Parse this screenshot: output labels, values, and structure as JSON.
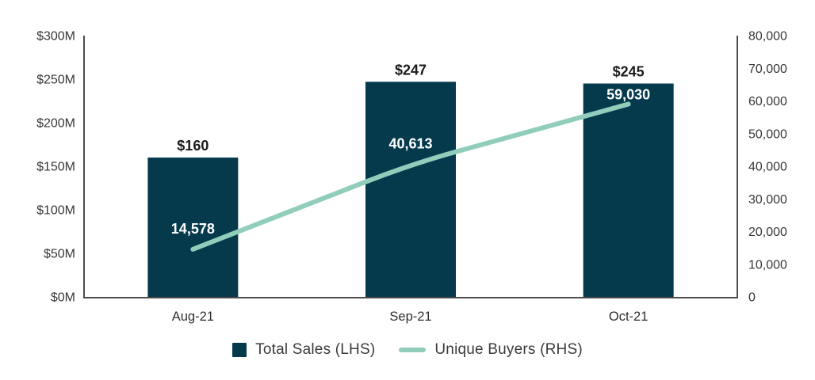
{
  "chart_data": {
    "type": "bar+line",
    "categories": [
      "Aug-21",
      "Sep-21",
      "Oct-21"
    ],
    "series": [
      {
        "name": "Total Sales (LHS)",
        "type": "bar",
        "axis": "left",
        "values": [
          160,
          247,
          245
        ],
        "labels": [
          "$160",
          "$247",
          "$245"
        ],
        "color": "#053A4D"
      },
      {
        "name": "Unique Buyers (RHS)",
        "type": "line",
        "axis": "right",
        "values": [
          14578,
          40613,
          59030
        ],
        "labels": [
          "14,578",
          "40,613",
          "59,030"
        ],
        "color": "#90CDBB"
      }
    ],
    "left_axis": {
      "min": 0,
      "max": 300,
      "ticks": [
        "$0M",
        "$50M",
        "$100M",
        "$150M",
        "$200M",
        "$250M",
        "$300M"
      ]
    },
    "right_axis": {
      "min": 0,
      "max": 80000,
      "ticks": [
        "0",
        "10,000",
        "20,000",
        "30,000",
        "40,000",
        "50,000",
        "60,000",
        "70,000",
        "80,000"
      ]
    },
    "title": "",
    "xlabel": "",
    "ylabel": "",
    "grid": false,
    "legend_position": "bottom"
  },
  "legend": {
    "bar_label": "Total Sales (LHS)",
    "line_label": "Unique Buyers (RHS)"
  },
  "colors": {
    "bar": "#053A4D",
    "line": "#90CDBB",
    "axis_line": "#4D4D4D",
    "tick_text": "#373737",
    "category_text": "#2E2E2E",
    "bar_value_text": "#1B1B1B",
    "line_value_text": "#FFFFFF",
    "background": "#FFFFFF"
  }
}
